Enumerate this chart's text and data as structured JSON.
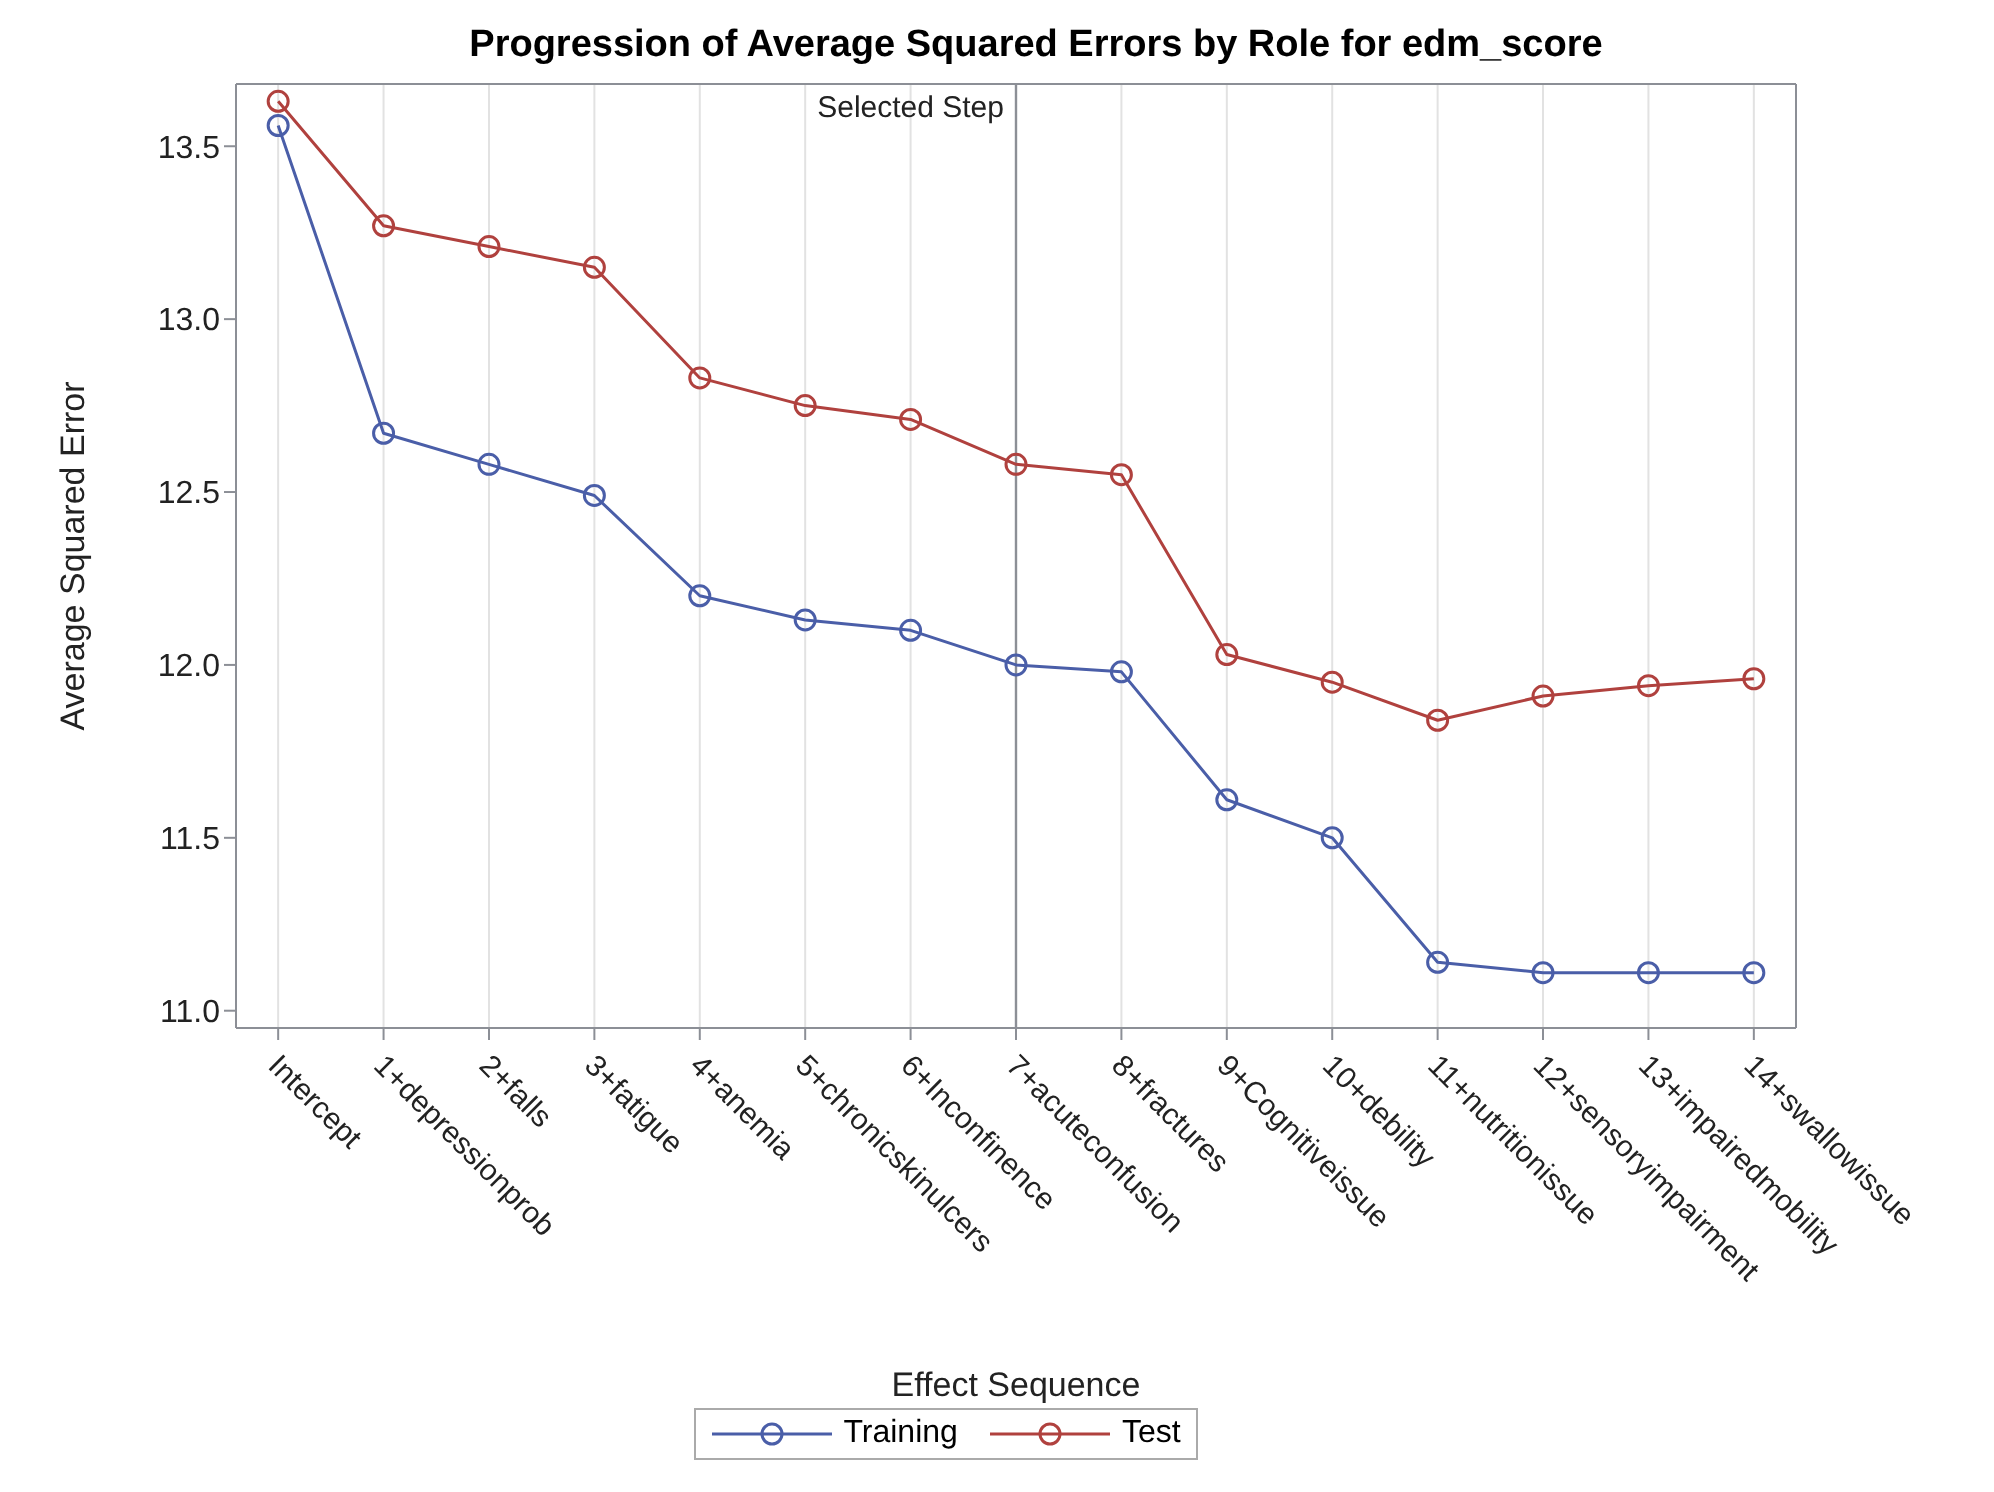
{
  "chart_data": {
    "type": "line",
    "title": "Progression of Average Squared Errors by Role for edm_score",
    "xlabel": "Effect Sequence",
    "ylabel": "Average Squared Error",
    "categories": [
      "Intercept",
      "1+depressionprob",
      "2+falls",
      "3+fatigue",
      "4+anemia",
      "5+chronicskinulcers",
      "6+Inconfinence",
      "7+acuteconfusion",
      "8+fractures",
      "9+Cognitiveissue",
      "10+debility",
      "11+nutritionissue",
      "12+sensoryimpairment",
      "13+impairedmobility",
      "14+swallowissue"
    ],
    "series": [
      {
        "name": "Training",
        "color": "#4a5ea8",
        "values": [
          13.56,
          12.67,
          12.58,
          12.49,
          12.2,
          12.13,
          12.1,
          12.0,
          11.98,
          11.61,
          11.5,
          11.14,
          11.11,
          11.11,
          11.11
        ]
      },
      {
        "name": "Test",
        "color": "#b0413e",
        "values": [
          13.63,
          13.27,
          13.21,
          13.15,
          12.83,
          12.75,
          12.71,
          12.58,
          12.55,
          12.03,
          11.95,
          11.84,
          11.91,
          11.94,
          11.96
        ]
      }
    ],
    "ylim": [
      10.95,
      13.68
    ],
    "yticks": [
      {
        "value": 11,
        "label": "11.0"
      },
      11.5,
      {
        "value": 12,
        "label": "12.0"
      },
      12.5,
      {
        "value": 13,
        "label": "13.0"
      },
      13.5
    ],
    "ref_lines": [
      {
        "axis": "x",
        "value": "7+acuteconfusion",
        "label": "Selected Step",
        "color": "#8c8f96"
      }
    ],
    "grid": "x",
    "legend": "bottom",
    "marker": "circle"
  }
}
